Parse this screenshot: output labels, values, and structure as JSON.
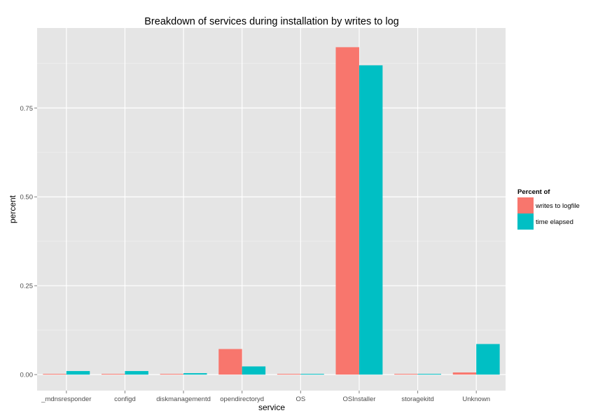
{
  "chart_data": {
    "type": "bar",
    "title": "Breakdown of services during installation by writes to log",
    "xlabel": "service",
    "ylabel": "percent",
    "categories": [
      "_mdnsresponder",
      "configd",
      "diskmanagementd",
      "opendirectoryd",
      "OS",
      "OSInstaller",
      "storagekitd",
      "Unknown"
    ],
    "series": [
      {
        "name": "writes to logfile",
        "color": "#F8766D",
        "values": [
          0.002,
          0.002,
          0.002,
          0.072,
          0.002,
          0.921,
          0.002,
          0.006
        ]
      },
      {
        "name": "time elapsed",
        "color": "#00BFC4",
        "values": [
          0.01,
          0.01,
          0.004,
          0.023,
          0.002,
          0.87,
          0.002,
          0.086
        ]
      }
    ],
    "ylim": [
      -0.045,
      0.975
    ],
    "yticks": [
      0,
      0.25,
      0.5,
      0.75
    ],
    "ytick_labels": [
      "0.00",
      "0.25",
      "0.50",
      "0.75"
    ],
    "legend": {
      "title": "Percent of",
      "placement": "right"
    },
    "grid": true,
    "panel_color": "#E5E5E5"
  }
}
